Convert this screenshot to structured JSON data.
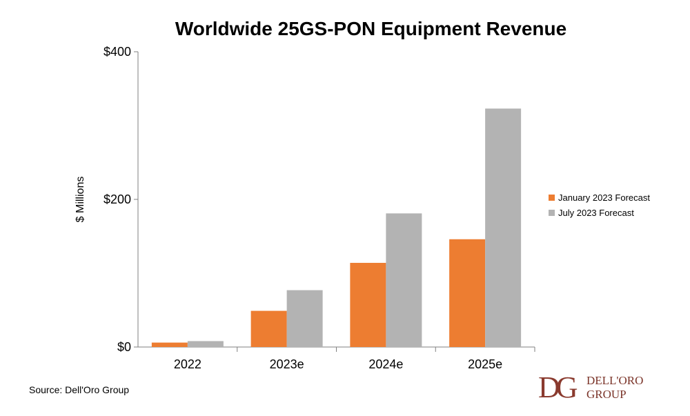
{
  "chart_data": {
    "type": "bar",
    "title": "Worldwide 25GS-PON Equipment Revenue",
    "ylabel": "$ Millions",
    "xlabel": "",
    "ylim": [
      0,
      400
    ],
    "yticks": [
      {
        "value": 0,
        "label": "$0"
      },
      {
        "value": 200,
        "label": "$200"
      },
      {
        "value": 400,
        "label": "$400"
      }
    ],
    "categories": [
      "2022",
      "2023e",
      "2024e",
      "2025e"
    ],
    "series": [
      {
        "name": "January 2023 Forecast",
        "color": "#ed7d31",
        "values": [
          6,
          49,
          114,
          146
        ]
      },
      {
        "name": "July 2023 Forecast",
        "color": "#b3b3b3",
        "values": [
          8,
          77,
          181,
          323
        ]
      }
    ],
    "legend_position": "right",
    "grid": false
  },
  "source": "Source: Dell'Oro Group",
  "logo": {
    "mark": "DG",
    "line1": "DELL'ORO",
    "line2": "GROUP"
  }
}
